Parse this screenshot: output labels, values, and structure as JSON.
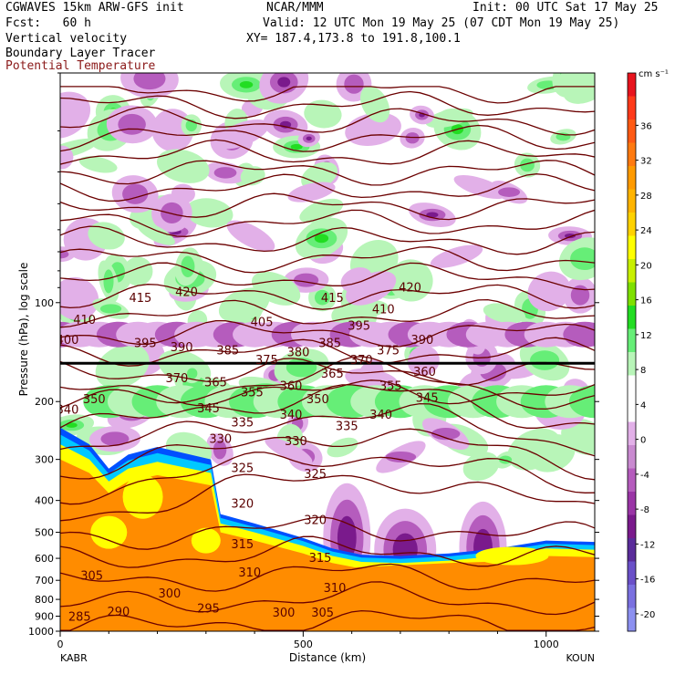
{
  "header": {
    "line1_left": "CGWAVES 15km ARW-GFS init",
    "line1_mid": "NCAR/MMM",
    "line1_right": "Init: 00 UTC Sat 17 May 25",
    "line2_left": "Fcst:   60 h",
    "line2_right": "Valid: 12 UTC Mon 19 May 25 (07 CDT Mon 19 May 25)",
    "line3_left": "Vertical velocity",
    "line3_right": "XY= 187.4,173.8 to 191.8,100.1",
    "line4_left": "Boundary Layer Tracer",
    "line5_left": "Potential Temperature"
  },
  "colors": {
    "theta_contour": "#6b0000",
    "green_strong": "#22dd22",
    "green_mid": "#66ee77",
    "green_light": "#b8f5b8",
    "purple_light": "#e2b0e8",
    "purple_mid": "#b55cbd",
    "purple_strong": "#7a1a8c",
    "tracer_orange": "#ff8c00",
    "tracer_yellow": "#ffff00",
    "tracer_cyan": "#00c8ff",
    "tracer_blue": "#0050ff"
  },
  "chart_data": {
    "type": "heatmap",
    "title": "",
    "xlabel": "Distance (km)",
    "ylabel": "Pressure (hPa), log scale",
    "x_ticks": [
      "0",
      "500",
      "1000"
    ],
    "x_range": [
      0,
      1100
    ],
    "y_ticks": [
      "100",
      "200",
      "300",
      "400",
      "500",
      "600",
      "700",
      "800",
      "900",
      "1000"
    ],
    "y_scale": "log",
    "y_range": [
      1000,
      20
    ],
    "endpoints": {
      "left": "KABR",
      "right": "KOUN"
    },
    "colorbar": {
      "units": "cm s⁻¹",
      "labels": [
        "36",
        "32",
        "28",
        "24",
        "20",
        "16",
        "12",
        "8",
        "4",
        "0",
        "-4",
        "-8",
        "-12",
        "-16",
        "-20"
      ],
      "colors": [
        "#e8141e",
        "#ff3a1a",
        "#ff5a14",
        "#ff7a10",
        "#ff9a00",
        "#ffb400",
        "#ffd200",
        "#ffff00",
        "#c8f000",
        "#7ee000",
        "#22dd22",
        "#66ee77",
        "#b8f5b8",
        "#ffffff",
        "#ffffff",
        "#e2b0e8",
        "#c98ad0",
        "#b55cbd",
        "#9a35a6",
        "#7a1a8c",
        "#5a2c9a",
        "#6a50c8",
        "#7a70e0",
        "#8c90f0"
      ]
    },
    "theta_contour_labels": [
      {
        "text": "420",
        "x": 260,
        "p": 93
      },
      {
        "text": "415",
        "x": 165,
        "p": 97
      },
      {
        "text": "410",
        "x": 50,
        "p": 113
      },
      {
        "text": "400",
        "x": 0,
        "p": 130
      },
      {
        "text": "395",
        "x": 175,
        "p": 133
      },
      {
        "text": "390",
        "x": 250,
        "p": 137
      },
      {
        "text": "385",
        "x": 345,
        "p": 140
      },
      {
        "text": "405",
        "x": 415,
        "p": 115
      },
      {
        "text": "375",
        "x": 425,
        "p": 150
      },
      {
        "text": "380",
        "x": 490,
        "p": 142
      },
      {
        "text": "385",
        "x": 555,
        "p": 133
      },
      {
        "text": "395",
        "x": 615,
        "p": 118
      },
      {
        "text": "410",
        "x": 665,
        "p": 105
      },
      {
        "text": "415",
        "x": 560,
        "p": 97
      },
      {
        "text": "420",
        "x": 720,
        "p": 90
      },
      {
        "text": "390",
        "x": 745,
        "p": 130
      },
      {
        "text": "375",
        "x": 675,
        "p": 140
      },
      {
        "text": "370",
        "x": 620,
        "p": 150
      },
      {
        "text": "370",
        "x": 240,
        "p": 170
      },
      {
        "text": "365",
        "x": 320,
        "p": 175
      },
      {
        "text": "360",
        "x": 475,
        "p": 180
      },
      {
        "text": "365",
        "x": 560,
        "p": 165
      },
      {
        "text": "360",
        "x": 750,
        "p": 163
      },
      {
        "text": "355",
        "x": 395,
        "p": 188
      },
      {
        "text": "355",
        "x": 680,
        "p": 180
      },
      {
        "text": "350",
        "x": 70,
        "p": 197
      },
      {
        "text": "350",
        "x": 530,
        "p": 197
      },
      {
        "text": "345",
        "x": 305,
        "p": 210
      },
      {
        "text": "345",
        "x": 755,
        "p": 195
      },
      {
        "text": "340",
        "x": 0,
        "p": 212
      },
      {
        "text": "340",
        "x": 475,
        "p": 220
      },
      {
        "text": "340",
        "x": 660,
        "p": 220
      },
      {
        "text": "335",
        "x": 375,
        "p": 232
      },
      {
        "text": "335",
        "x": 590,
        "p": 238
      },
      {
        "text": "330",
        "x": 330,
        "p": 260
      },
      {
        "text": "330",
        "x": 485,
        "p": 265
      },
      {
        "text": "325",
        "x": 375,
        "p": 320
      },
      {
        "text": "325",
        "x": 525,
        "p": 333
      },
      {
        "text": "320",
        "x": 375,
        "p": 410
      },
      {
        "text": "320",
        "x": 525,
        "p": 460
      },
      {
        "text": "315",
        "x": 375,
        "p": 545
      },
      {
        "text": "315",
        "x": 535,
        "p": 600
      },
      {
        "text": "310",
        "x": 390,
        "p": 665
      },
      {
        "text": "310",
        "x": 565,
        "p": 740
      },
      {
        "text": "305",
        "x": 65,
        "p": 680
      },
      {
        "text": "305",
        "x": 540,
        "p": 880
      },
      {
        "text": "300",
        "x": 225,
        "p": 770
      },
      {
        "text": "300",
        "x": 460,
        "p": 880
      },
      {
        "text": "295",
        "x": 305,
        "p": 855
      },
      {
        "text": "290",
        "x": 120,
        "p": 875
      },
      {
        "text": "285",
        "x": 40,
        "p": 905
      }
    ]
  }
}
